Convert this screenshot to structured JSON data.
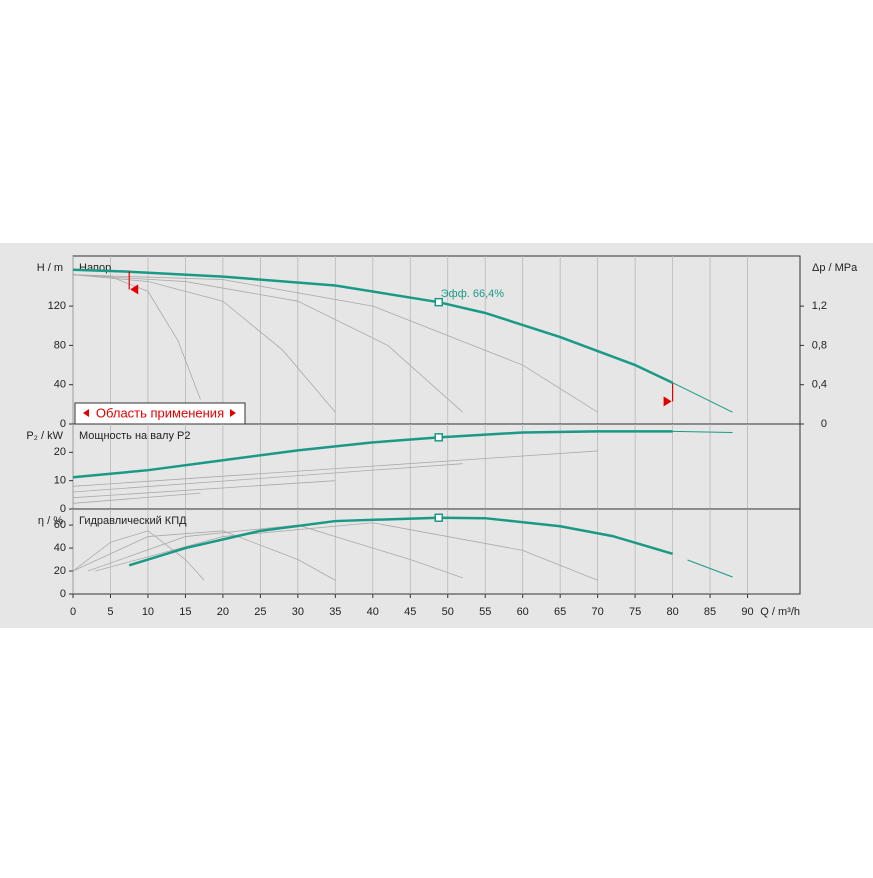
{
  "chart_data": [
    {
      "type": "line",
      "ylabel": "H / m",
      "y2label": "Δp / MPa",
      "annotation": "Напор",
      "ylim": [
        0,
        171
      ],
      "yticks": [
        0,
        40,
        80,
        120
      ],
      "y2lim": [
        0,
        1.71
      ],
      "y2ticks": [
        0,
        {
          "value": 0.4,
          "label": "0,4"
        },
        {
          "value": 0.8,
          "label": "0,8"
        },
        {
          "value": 1.2,
          "label": "1,2"
        }
      ],
      "series": [
        {
          "color": "#aaaaaa",
          "linewidth": 0.8,
          "x": [
            0,
            5,
            10,
            14,
            17
          ],
          "values": [
            152,
            150,
            135,
            85,
            25
          ]
        },
        {
          "color": "#aaaaaa",
          "linewidth": 0.8,
          "x": [
            0,
            10,
            20,
            28,
            35
          ],
          "values": [
            152,
            145,
            125,
            75,
            12
          ]
        },
        {
          "color": "#aaaaaa",
          "linewidth": 0.8,
          "x": [
            0,
            15,
            30,
            42,
            52
          ],
          "values": [
            152,
            145,
            125,
            80,
            12
          ]
        },
        {
          "color": "#aaaaaa",
          "linewidth": 0.8,
          "x": [
            0,
            20,
            40,
            60,
            70
          ],
          "values": [
            152,
            147,
            120,
            60,
            12
          ]
        },
        {
          "color": "#1a9a86",
          "linewidth": 2.5,
          "x": [
            0,
            7.5,
            20,
            35,
            48.8,
            55,
            65,
            75,
            80
          ],
          "values": [
            157,
            155,
            150,
            141,
            124,
            113,
            88.5,
            60,
            42
          ]
        },
        {
          "color": "#1a9a86",
          "linewidth": 1,
          "x": [
            80,
            88
          ],
          "values": [
            42,
            12
          ]
        }
      ],
      "marker": {
        "x": 48.8,
        "y": 124,
        "label": "Эфф.  66,4%"
      },
      "application_range": {
        "label": "Область применения",
        "limits": [
          7.5,
          80
        ],
        "heights": [
          137,
          23
        ]
      }
    },
    {
      "type": "line",
      "ylabel": "P₂ / kW",
      "annotation": "Мощность на валу P2",
      "ylim": [
        0,
        30
      ],
      "yticks": [
        0,
        10,
        20
      ],
      "series": [
        {
          "color": "#aaaaaa",
          "linewidth": 0.8,
          "x": [
            0,
            17
          ],
          "values": [
            2,
            5.6
          ]
        },
        {
          "color": "#aaaaaa",
          "linewidth": 0.8,
          "x": [
            0,
            35
          ],
          "values": [
            4,
            10
          ]
        },
        {
          "color": "#aaaaaa",
          "linewidth": 0.8,
          "x": [
            0,
            52
          ],
          "values": [
            6,
            16
          ]
        },
        {
          "color": "#aaaaaa",
          "linewidth": 0.8,
          "x": [
            0,
            70
          ],
          "values": [
            8,
            20.5
          ]
        },
        {
          "color": "#1a9a86",
          "linewidth": 2.5,
          "x": [
            0,
            10,
            20,
            30,
            40,
            48.8,
            60,
            70,
            80
          ],
          "values": [
            11.2,
            13.7,
            17.2,
            20.7,
            23.5,
            25.3,
            27,
            27.4,
            27.4
          ]
        },
        {
          "color": "#1a9a86",
          "linewidth": 1,
          "x": [
            80,
            88
          ],
          "values": [
            27.4,
            27
          ]
        }
      ],
      "marker": {
        "x": 48.8,
        "y": 25.3
      }
    },
    {
      "type": "line",
      "ylabel": "η / %",
      "annotation": "Гидравлический КПД",
      "xlabel": "Q / m³/h",
      "ylim": [
        0,
        74
      ],
      "yticks": [
        0,
        20,
        40,
        60
      ],
      "xlim": [
        0,
        97
      ],
      "xticks": [
        0,
        5,
        10,
        15,
        20,
        25,
        30,
        35,
        40,
        45,
        50,
        55,
        60,
        65,
        70,
        75,
        80,
        85,
        90
      ],
      "series": [
        {
          "color": "#aaaaaa",
          "linewidth": 0.8,
          "x": [
            0,
            5,
            10,
            15,
            17.5
          ],
          "values": [
            20,
            45,
            55,
            30,
            12
          ]
        },
        {
          "color": "#aaaaaa",
          "linewidth": 0.8,
          "x": [
            0,
            10,
            20,
            30,
            35
          ],
          "values": [
            20,
            50,
            55,
            30,
            12
          ]
        },
        {
          "color": "#aaaaaa",
          "linewidth": 0.8,
          "x": [
            2,
            15,
            30,
            45,
            52
          ],
          "values": [
            20,
            50,
            60,
            30,
            14
          ]
        },
        {
          "color": "#aaaaaa",
          "linewidth": 0.8,
          "x": [
            3,
            20,
            40,
            60,
            70
          ],
          "values": [
            20,
            50,
            62,
            38,
            12
          ]
        },
        {
          "color": "#1a9a86",
          "linewidth": 2.5,
          "x": [
            7.5,
            15,
            25,
            35,
            48.8,
            55,
            65,
            72,
            80
          ],
          "values": [
            25,
            40,
            55,
            63.5,
            66.4,
            66,
            59,
            50.4,
            35
          ]
        },
        {
          "color": "#1a9a86",
          "linewidth": 1,
          "x": [
            82,
            88
          ],
          "values": [
            29.6,
            14.8
          ]
        }
      ],
      "marker": {
        "x": 48.8,
        "y": 66.4
      }
    }
  ]
}
